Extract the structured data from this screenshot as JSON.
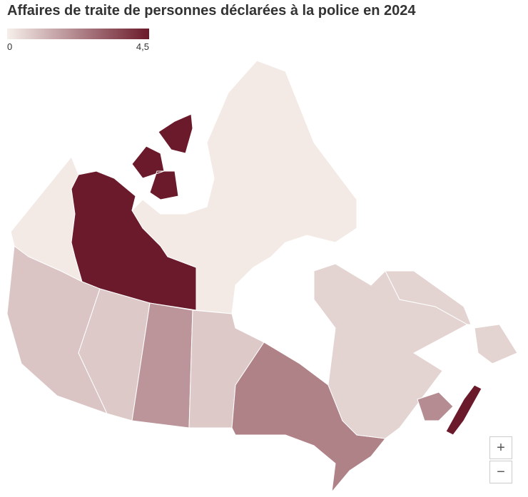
{
  "title": "Affaires de traite de personnes déclarées à la police en 2024",
  "legend": {
    "min": 0,
    "max": {
      "value": 4.5,
      "label": "4,5"
    },
    "colors": [
      "#f6efea",
      "#6b1a2b"
    ]
  },
  "map": {
    "regions": [
      {
        "value": 0.1
      },
      {
        "value": 4.5
      },
      {
        "value": 0.1
      },
      {
        "value": 0.9
      },
      {
        "value": 0.8
      },
      {
        "value": 1.9
      },
      {
        "value": 0.8
      },
      {
        "value": 2.3
      },
      {
        "value": 0.6
      },
      {
        "value": 0.6
      },
      {
        "value": 2.1
      },
      {
        "value": 4.5
      }
    ]
  },
  "zoom": {
    "in": "+",
    "out": "−"
  }
}
